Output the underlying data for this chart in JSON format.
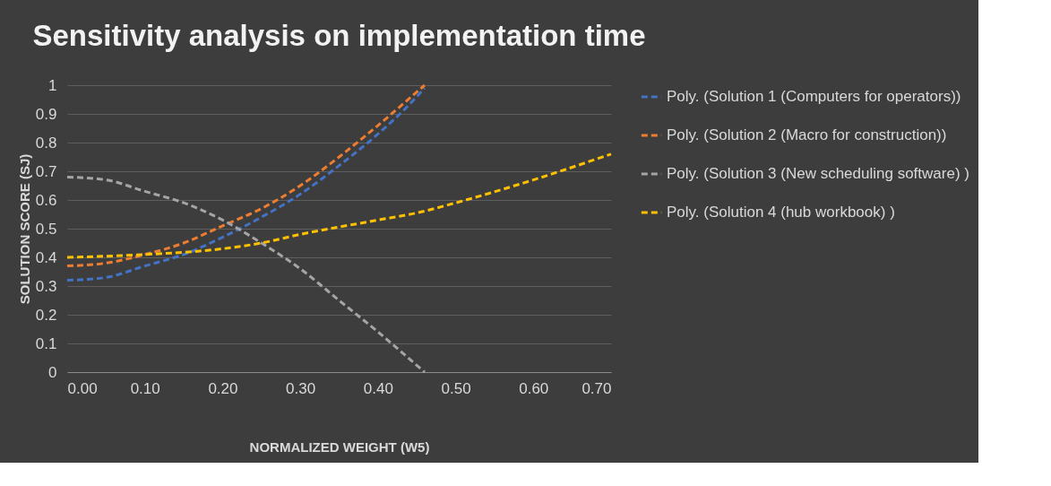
{
  "chart_data": {
    "type": "line",
    "title": "Sensitivity analysis on implementation time",
    "xlabel": "NORMALIZED WEIGHT (W5)",
    "ylabel": "SOLUTION SCORE (SJ)",
    "xlim": [
      0,
      0.7
    ],
    "ylim": [
      0,
      1
    ],
    "xticks": [
      {
        "value": 0,
        "label": "0.00"
      },
      {
        "value": 0.1,
        "label": "0.10"
      },
      {
        "value": 0.2,
        "label": "0.20"
      },
      {
        "value": 0.3,
        "label": "0.30"
      },
      {
        "value": 0.4,
        "label": "0.40"
      },
      {
        "value": 0.5,
        "label": "0.50"
      },
      {
        "value": 0.6,
        "label": "0.60"
      },
      {
        "value": 0.7,
        "label": "0.70"
      }
    ],
    "yticks": [
      0,
      0.1,
      0.2,
      0.3,
      0.4,
      0.5,
      0.6,
      0.7,
      0.8,
      0.9,
      1
    ],
    "grid": "y",
    "legend": "right",
    "marker": "none",
    "line_style": "dashed",
    "series": [
      {
        "name": "Poly. (Solution 1 (Computers for operators))",
        "color": "#4472c4",
        "x": [
          0,
          0.05,
          0.1,
          0.15,
          0.2,
          0.25,
          0.3,
          0.35,
          0.4,
          0.45,
          0.46
        ],
        "values": [
          0.32,
          0.33,
          0.37,
          0.41,
          0.47,
          0.54,
          0.62,
          0.72,
          0.83,
          0.96,
          0.99
        ]
      },
      {
        "name": "Poly. (Solution 2 (Macro for construction))",
        "color": "#ed7d31",
        "x": [
          0,
          0.05,
          0.1,
          0.15,
          0.2,
          0.25,
          0.3,
          0.35,
          0.4,
          0.46
        ],
        "values": [
          0.37,
          0.38,
          0.41,
          0.45,
          0.51,
          0.57,
          0.65,
          0.75,
          0.86,
          1.0
        ]
      },
      {
        "name": "Poly. (Solution 3 (New scheduling software) )",
        "color": "#a5a5a5",
        "x": [
          0,
          0.05,
          0.1,
          0.15,
          0.2,
          0.25,
          0.3,
          0.35,
          0.4,
          0.46
        ],
        "values": [
          0.68,
          0.67,
          0.63,
          0.59,
          0.53,
          0.45,
          0.36,
          0.25,
          0.14,
          0.0
        ]
      },
      {
        "name": "Poly. (Solution 4 (hub workbook) )",
        "color": "#ffc000",
        "x": [
          0,
          0.1,
          0.2,
          0.25,
          0.3,
          0.4,
          0.45,
          0.5,
          0.6,
          0.7
        ],
        "values": [
          0.4,
          0.41,
          0.43,
          0.45,
          0.48,
          0.53,
          0.555,
          0.59,
          0.67,
          0.76
        ]
      }
    ]
  }
}
